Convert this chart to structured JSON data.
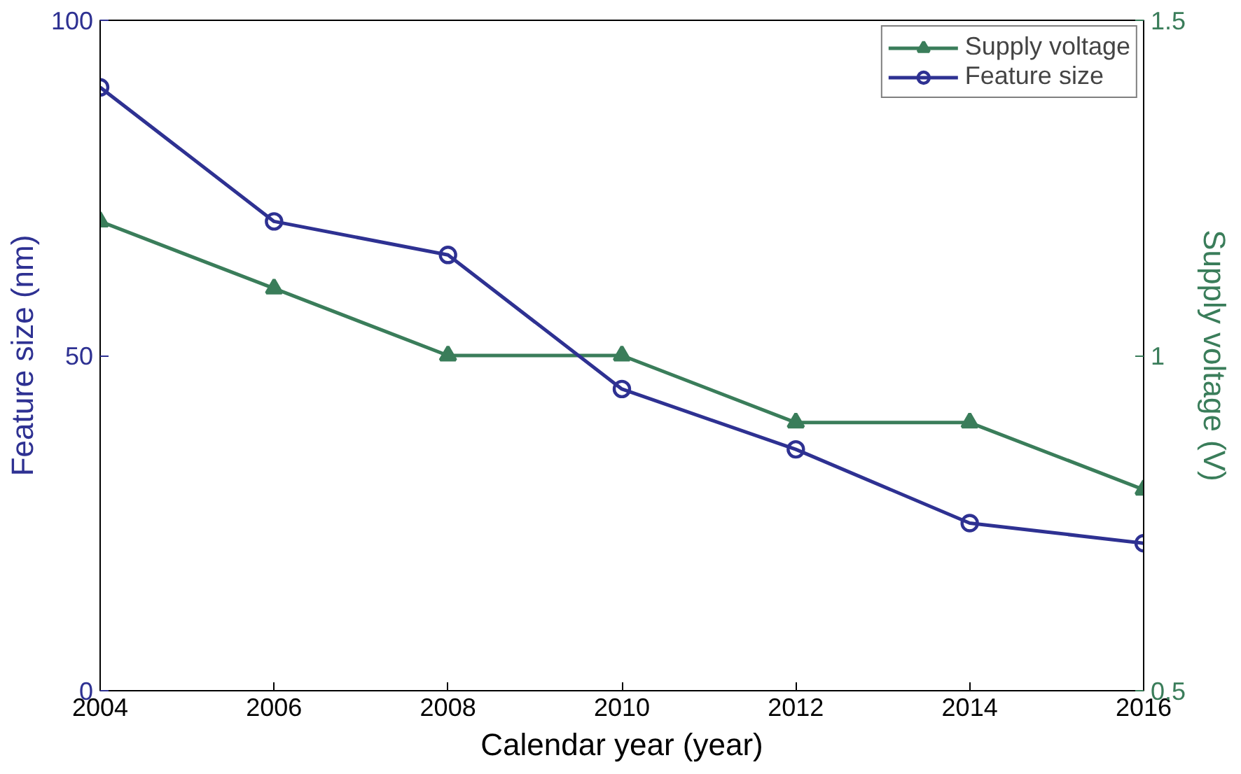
{
  "chart_data": {
    "type": "line",
    "xlabel": "Calendar year (year)",
    "ylabel": "Feature size (nm)",
    "y2label": "Supply voltage (V)",
    "x": [
      2004,
      2006,
      2008,
      2010,
      2012,
      2014,
      2016
    ],
    "series": [
      {
        "name": "Supply voltage",
        "color": "#3a7d5a",
        "axis": "y2",
        "marker": "triangle",
        "values": [
          1.2,
          1.1,
          1.0,
          1.0,
          0.9,
          0.9,
          0.8
        ]
      },
      {
        "name": "Feature size",
        "color": "#2e3192",
        "marker": "circle",
        "values": [
          90,
          70,
          65,
          45,
          36,
          25,
          22
        ]
      }
    ],
    "xlim": [
      2004,
      2016
    ],
    "xticks": [
      2004,
      2006,
      2008,
      2010,
      2012,
      2014,
      2016
    ],
    "ylim": [
      0,
      100
    ],
    "yticks": [
      0,
      50,
      100
    ],
    "y2lim": [
      0.5,
      1.5
    ],
    "y2ticks": [
      0.5,
      1,
      1.5
    ],
    "grid": false,
    "legend": "top right",
    "line_style": "solid"
  }
}
